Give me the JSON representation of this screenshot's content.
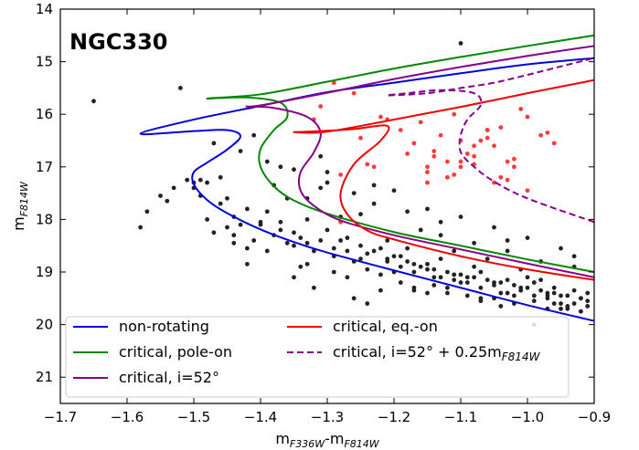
{
  "chart_data": {
    "type": "scatter",
    "title": "NGC330",
    "xlabel": {
      "main": "m",
      "sub1": "F336W",
      "mid": "-m",
      "sub2": "F814W"
    },
    "ylabel": {
      "main": "m",
      "sub": "F814W"
    },
    "xlim": [
      -1.7,
      -0.9
    ],
    "ylim": [
      21.5,
      14
    ],
    "y_inverted": true,
    "xticks": [
      -1.7,
      -1.6,
      -1.5,
      -1.4,
      -1.3,
      -1.2,
      -1.1,
      -1.0,
      -0.9
    ],
    "xtick_labels": [
      "−1.7",
      "−1.6",
      "−1.5",
      "−1.4",
      "−1.3",
      "−1.2",
      "−1.1",
      "−1.0",
      "−0.9"
    ],
    "yticks": [
      14,
      15,
      16,
      17,
      18,
      19,
      20,
      21
    ],
    "ytick_labels": [
      "14",
      "15",
      "16",
      "17",
      "18",
      "19",
      "20",
      "21"
    ],
    "grid": false,
    "legend_position": "bottom",
    "series": [
      {
        "name": "non-rotating",
        "color": "#0000dd",
        "dash": "solid",
        "x": [
          -0.9,
          -1.0,
          -1.1,
          -1.2,
          -1.3,
          -1.35,
          -1.4,
          -1.45,
          -1.48,
          -1.5,
          -1.5,
          -1.48,
          -1.45,
          -1.43,
          -1.45,
          -1.5,
          -1.58,
          -1.5,
          -1.4,
          -1.3,
          -1.2,
          -1.1,
          -1.0,
          -0.9
        ],
        "y": [
          19.93,
          19.63,
          19.3,
          18.97,
          18.63,
          18.43,
          18.19,
          17.88,
          17.63,
          17.33,
          17.1,
          16.92,
          16.67,
          16.42,
          16.3,
          16.32,
          16.37,
          16.1,
          15.84,
          15.58,
          15.4,
          15.22,
          15.05,
          14.93
        ]
      },
      {
        "name": "critical, pole-on",
        "color": "#008800",
        "dash": "solid",
        "x": [
          -0.9,
          -1.0,
          -1.1,
          -1.2,
          -1.3,
          -1.35,
          -1.38,
          -1.4,
          -1.4,
          -1.38,
          -1.36,
          -1.37,
          -1.42,
          -1.48,
          -1.4,
          -1.3,
          -1.2,
          -1.1,
          -1.0,
          -0.9
        ],
        "y": [
          19.0,
          18.76,
          18.5,
          18.24,
          17.89,
          17.64,
          17.37,
          17.0,
          16.66,
          16.3,
          16.05,
          15.78,
          15.68,
          15.7,
          15.62,
          15.38,
          15.13,
          14.91,
          14.7,
          14.5
        ]
      },
      {
        "name": "critical, i=52°",
        "color": "#880088",
        "dash": "solid",
        "x": [
          -0.9,
          -1.0,
          -1.1,
          -1.2,
          -1.28,
          -1.32,
          -1.34,
          -1.34,
          -1.32,
          -1.31,
          -1.33,
          -1.38,
          -1.42,
          -1.4,
          -1.3,
          -1.2,
          -1.1,
          -1.0,
          -0.9
        ],
        "y": [
          19.1,
          18.84,
          18.57,
          18.3,
          18.02,
          17.74,
          17.45,
          17.1,
          16.72,
          16.35,
          16.05,
          15.88,
          15.85,
          15.83,
          15.59,
          15.33,
          15.1,
          14.89,
          14.7
        ]
      },
      {
        "name": "critical, eq.-on",
        "color": "#ee0000",
        "dash": "solid",
        "x": [
          -0.9,
          -1.0,
          -1.1,
          -1.2,
          -1.24,
          -1.27,
          -1.28,
          -1.26,
          -1.22,
          -1.21,
          -1.26,
          -1.31,
          -1.35,
          -1.3,
          -1.2,
          -1.1,
          -1.0,
          -0.9
        ],
        "y": [
          19.15,
          18.95,
          18.7,
          18.38,
          18.21,
          17.9,
          17.5,
          16.95,
          16.5,
          16.22,
          16.28,
          16.32,
          16.34,
          16.33,
          16.1,
          15.86,
          15.6,
          15.35
        ]
      },
      {
        "name": "critical, i=52° + 0.25m",
        "name_sub": "F814W",
        "color": "#880088",
        "dash": "dashed",
        "x": [
          -0.9,
          -1.0,
          -1.05,
          -1.08,
          -1.1,
          -1.1,
          -1.09,
          -1.07,
          -1.08,
          -1.13,
          -1.18,
          -1.21,
          -1.15,
          -1.1,
          -1.05,
          -1.0,
          -0.95,
          -0.9
        ],
        "y": [
          18.05,
          17.6,
          17.28,
          17.0,
          16.72,
          16.4,
          16.1,
          15.82,
          15.6,
          15.54,
          15.6,
          15.64,
          15.6,
          15.5,
          15.4,
          15.25,
          15.09,
          14.93
        ]
      }
    ],
    "scatter_red_stars": {
      "color": "#ff3b3b",
      "x": [
        -1.29,
        -1.26,
        -1.25,
        -1.23,
        -1.32,
        -1.31,
        -1.28,
        -1.22,
        -1.21,
        -1.19,
        -1.17,
        -1.16,
        -1.15,
        -1.14,
        -1.13,
        -1.12,
        -1.1,
        -1.09,
        -1.08,
        -1.07,
        -1.06,
        -1.05,
        -1.04,
        -1.03,
        -1.02,
        -1.01,
        -1.0,
        -0.98,
        -0.97,
        -1.15,
        -1.12,
        -1.1,
        -1.08,
        -1.05,
        -1.03,
        -1.0,
        -1.14,
        -1.1,
        -1.06,
        -1.02,
        -1.18,
        -1.24,
        -1.28,
        -1.15,
        -1.11,
        -1.08,
        -1.06,
        -1.04,
        -1.11,
        -0.96
      ],
      "y": [
        15.4,
        15.6,
        16.45,
        17.0,
        16.1,
        15.85,
        18.05,
        16.05,
        16.1,
        16.3,
        16.55,
        16.15,
        17.0,
        16.7,
        16.4,
        16.9,
        16.9,
        16.75,
        16.6,
        16.5,
        16.3,
        16.6,
        17.2,
        16.9,
        17.0,
        15.9,
        16.05,
        16.4,
        16.35,
        17.1,
        17.2,
        17.0,
        16.8,
        17.3,
        17.25,
        17.45,
        16.8,
        16.5,
        16.3,
        16.85,
        16.75,
        16.95,
        17.15,
        17.3,
        17.15,
        16.95,
        16.45,
        16.25,
        16.0,
        16.55
      ]
    },
    "scatter_black_stars": {
      "color": "#222222",
      "note": "cluster stars",
      "x": [
        -1.1,
        -1.65,
        -1.52,
        -1.47,
        -1.55,
        -1.57,
        -1.58,
        -1.54,
        -1.5,
        -1.45,
        -1.42,
        -1.4,
        -1.38,
        -1.35,
        -1.33,
        -1.3,
        -1.27,
        -1.25,
        -1.22,
        -1.2,
        -1.18,
        -1.16,
        -1.14,
        -1.12,
        -1.1,
        -1.08,
        -1.06,
        -1.04,
        -1.02,
        -1.0,
        -0.98,
        -0.96,
        -0.94,
        -0.92,
        -0.91,
        -1.49,
        -1.46,
        -1.44,
        -1.41,
        -1.39,
        -1.37,
        -1.34,
        -1.32,
        -1.29,
        -1.26,
        -1.24,
        -1.21,
        -1.19,
        -1.17,
        -1.15,
        -1.13,
        -1.11,
        -1.09,
        -1.07,
        -1.05,
        -1.03,
        -1.01,
        -0.99,
        -0.97,
        -0.95,
        -0.93,
        -1.36,
        -1.31,
        -1.28,
        -1.23,
        -1.18,
        -1.13,
        -1.08,
        -1.03,
        -0.98,
        -0.93,
        -1.43,
        -1.39,
        -1.35,
        -1.3,
        -1.26,
        -1.2,
        -1.15,
        -1.1,
        -1.05,
        -1.0,
        -0.95,
        -1.32,
        -1.27,
        -1.22,
        -1.17,
        -1.12,
        -1.07,
        -1.02,
        -0.97,
        -0.92,
        -1.48,
        -1.44,
        -1.4,
        -1.34,
        -1.29,
        -1.24,
        -1.19,
        -1.14,
        -1.09,
        -1.04,
        -0.99,
        -0.94,
        -1.37,
        -1.25,
        -1.16,
        -1.06,
        -0.96,
        -1.46,
        -1.33,
        -1.21,
        -1.11,
        -1.01,
        -0.91,
        -1.42,
        -1.38,
        -1.28,
        -1.18,
        -1.08,
        -0.98,
        -1.41,
        -1.31,
        -1.23,
        -1.13,
        -1.03,
        -0.93,
        -1.36,
        -1.26,
        -1.14,
        -1.02,
        -0.95,
        -1.47,
        -1.43,
        -1.33,
        -1.2,
        -1.1,
        -1.0,
        -0.92,
        -1.3,
        -1.17,
        -1.07,
        -0.97,
        -1.24,
        -1.12,
        -1.04,
        -0.96,
        -1.35,
        -1.22,
        -1.15,
        -1.05,
        -0.99,
        -0.94,
        -1.53,
        -1.51,
        -1.5,
        -1.48,
        -1.49,
        -1.45,
        -1.44,
        -1.42,
        -1.39,
        -1.37,
        -1.35,
        -1.33,
        -1.31,
        -1.29,
        -1.27,
        -1.25,
        -1.23,
        -1.21,
        -1.19,
        -1.17,
        -1.15,
        -1.13,
        -1.11,
        -1.09,
        -1.07,
        -1.05,
        -1.03,
        -1.01,
        -0.99,
        -0.97,
        -0.95,
        -0.93,
        -0.91
      ],
      "y": [
        14.65,
        15.75,
        15.5,
        16.55,
        17.55,
        17.85,
        18.15,
        17.65,
        17.3,
        17.6,
        17.8,
        18.1,
        18.3,
        18.5,
        18.0,
        18.2,
        18.35,
        18.5,
        18.55,
        18.7,
        18.8,
        18.9,
        18.95,
        19.0,
        19.05,
        19.1,
        19.15,
        19.2,
        19.25,
        19.3,
        19.35,
        19.4,
        19.45,
        19.5,
        19.55,
        17.25,
        17.7,
        18.3,
        18.4,
        18.6,
        18.2,
        18.35,
        18.6,
        18.7,
        18.8,
        18.65,
        18.75,
        18.9,
        19.0,
        18.85,
        19.1,
        19.15,
        19.2,
        19.3,
        19.25,
        19.4,
        19.35,
        19.45,
        19.5,
        19.6,
        19.6,
        17.6,
        17.4,
        17.95,
        17.7,
        17.85,
        18.3,
        18.45,
        18.6,
        18.8,
        18.9,
        16.7,
        16.9,
        17.05,
        17.3,
        17.5,
        17.45,
        17.8,
        17.95,
        18.15,
        18.35,
        18.55,
        19.3,
        19.1,
        19.05,
        19.3,
        19.4,
        19.55,
        19.6,
        19.7,
        19.5,
        18.0,
        18.45,
        18.05,
        18.9,
        19.0,
        18.95,
        19.2,
        19.25,
        19.45,
        19.4,
        19.55,
        19.65,
        17.0,
        17.9,
        18.2,
        18.75,
        19.3,
        17.2,
        17.6,
        18.4,
        18.6,
        18.95,
        19.4,
        18.85,
        17.35,
        18.4,
        18.55,
        18.9,
        19.15,
        16.4,
        16.8,
        17.35,
        18.05,
        18.4,
        18.7,
        18.45,
        19.5,
        19.1,
        19.45,
        19.7,
        18.25,
        18.1,
        18.85,
        19.0,
        19.2,
        19.1,
        19.75,
        17.1,
        19.35,
        19.5,
        19.45,
        19.6,
        19.3,
        19.65,
        19.6,
        19.1,
        19.35,
        19.4,
        19.5,
        20.0,
        19.7,
        17.4,
        17.25,
        17.4,
        17.3,
        17.55,
        18.15,
        17.95,
        18.55,
        17.85,
        18.05,
        18.25,
        18.45,
        18.4,
        18.55,
        18.6,
        18.75,
        18.6,
        18.8,
        18.7,
        18.85,
        18.95,
        18.75,
        19.05,
        19.1,
        19.0,
        19.2,
        19.15,
        19.3,
        19.2,
        19.4,
        19.45,
        19.35,
        19.65
      ]
    },
    "legend": {
      "columns": 2,
      "entries_order": [
        0,
        1,
        2,
        3,
        4
      ]
    }
  }
}
